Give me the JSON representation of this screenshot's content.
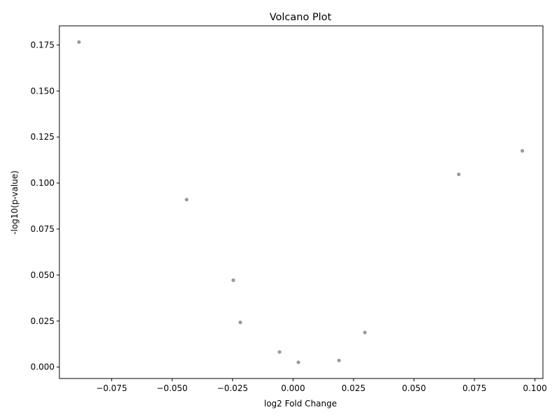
{
  "chart_data": {
    "type": "scatter",
    "title": "Volcano Plot",
    "xlabel": "log2 Fold Change",
    "ylabel": "-log10(p-value)",
    "xlim": [
      -0.0966,
      0.1033
    ],
    "ylim": [
      -0.0062,
      0.1854
    ],
    "x_ticks": [
      -0.075,
      -0.05,
      -0.025,
      0.0,
      0.025,
      0.05,
      0.075,
      0.1
    ],
    "x_tick_labels": [
      "−0.075",
      "−0.050",
      "−0.025",
      "0.000",
      "0.025",
      "0.050",
      "0.075",
      "0.100"
    ],
    "y_ticks": [
      0.0,
      0.025,
      0.05,
      0.075,
      0.1,
      0.125,
      0.15,
      0.175
    ],
    "y_tick_labels": [
      "0.000",
      "0.025",
      "0.050",
      "0.075",
      "0.100",
      "0.125",
      "0.150",
      "0.175"
    ],
    "grid": false,
    "point_color": "#999999",
    "points": [
      {
        "x": -0.0885,
        "y": 0.1766
      },
      {
        "x": -0.044,
        "y": 0.091
      },
      {
        "x": -0.0247,
        "y": 0.0472
      },
      {
        "x": -0.0218,
        "y": 0.0243
      },
      {
        "x": -0.0056,
        "y": 0.0082
      },
      {
        "x": 0.0022,
        "y": 0.0026
      },
      {
        "x": 0.019,
        "y": 0.0036
      },
      {
        "x": 0.0297,
        "y": 0.0188
      },
      {
        "x": 0.0685,
        "y": 0.1047
      },
      {
        "x": 0.0948,
        "y": 0.1175
      }
    ]
  }
}
